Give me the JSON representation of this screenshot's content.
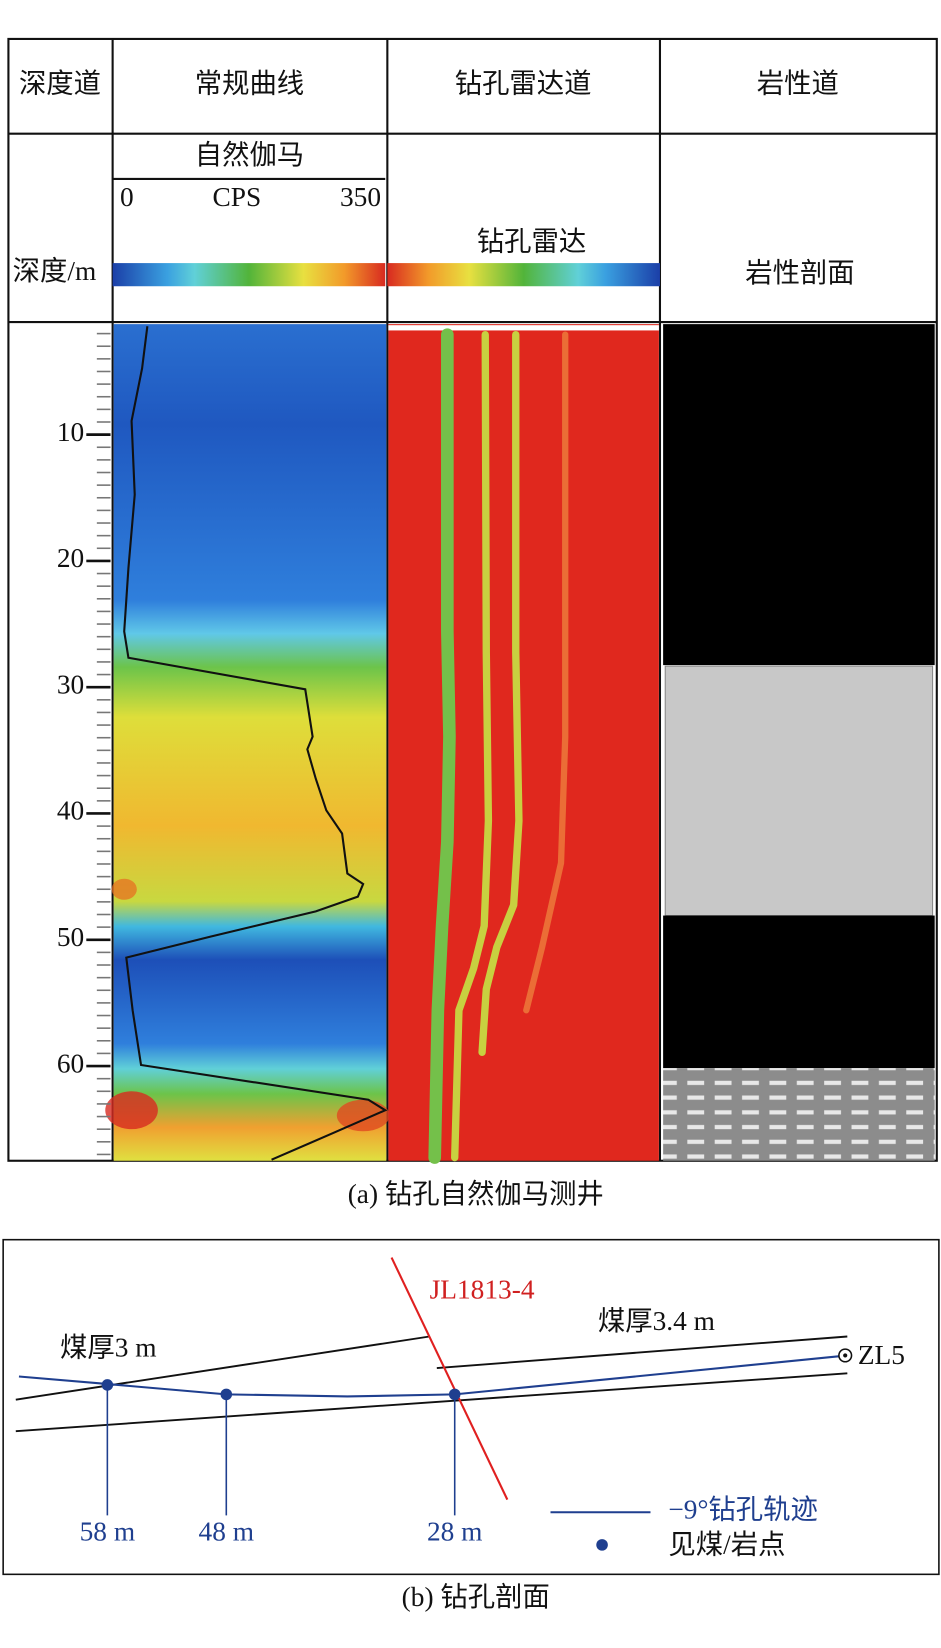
{
  "figure_a": {
    "header": [
      "深度道",
      "常规曲线",
      "钻孔雷达道",
      "岩性道"
    ],
    "depth_label": "深度/m",
    "gamma": {
      "title": "自然伽马",
      "min_label": "0",
      "unit": "CPS",
      "max_label": "350"
    },
    "radar_title": "钻孔雷达",
    "lithology_title": "岩性剖面",
    "depth_lim": [
      1.25,
      67.5
    ],
    "depth_ticks": [
      10,
      20,
      30,
      40,
      50,
      60
    ],
    "caption": "(a) 钻孔自然伽马测井"
  },
  "figure_b": {
    "fault_label": "JL1813-4",
    "seam_left": "煤厚3 m",
    "seam_right": "煤厚3.4 m",
    "borehole": "ZL5",
    "points": [
      "58 m",
      "48 m",
      "28 m"
    ],
    "legend": {
      "trajectory": "−9°钻孔轨迹",
      "point": "见煤/岩点"
    },
    "caption": "(b) 钻孔剖面"
  }
}
